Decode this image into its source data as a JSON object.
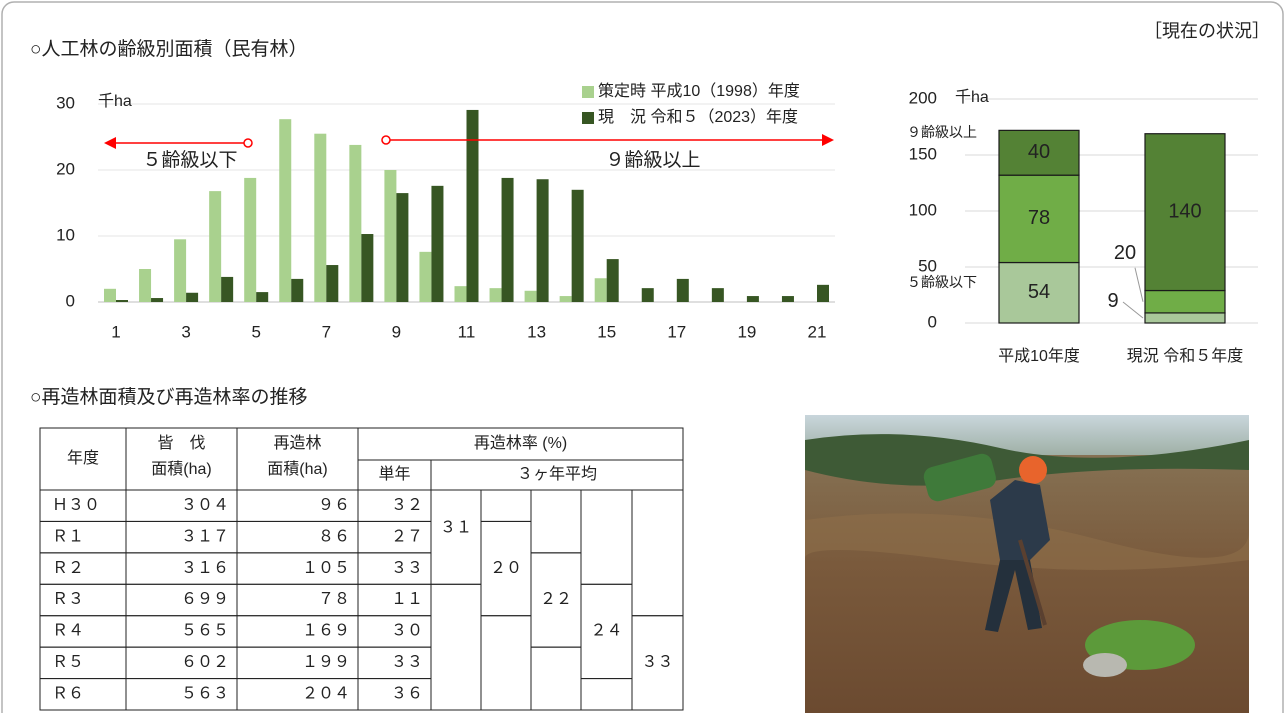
{
  "header": "［現在の状況］",
  "chart_data": [
    {
      "type": "bar",
      "title": "○人工林の齢級別面積（民有林）",
      "y_unit": "千ha",
      "categories": [
        "1",
        null,
        "3",
        null,
        "5",
        null,
        "7",
        null,
        "9",
        null,
        "11",
        null,
        "13",
        null,
        "15",
        null,
        "17",
        null,
        "19",
        null,
        "21"
      ],
      "series": [
        {
          "name": "策定時 平成10（1998）年度",
          "color": "#a9d18e",
          "values": [
            2.0,
            5.0,
            9.5,
            16.8,
            18.8,
            27.7,
            25.5,
            23.8,
            20.0,
            7.6,
            2.4,
            2.1,
            1.7,
            0.9,
            3.6,
            0,
            0,
            0,
            0,
            0,
            0
          ]
        },
        {
          "name": "現　況 令和５（2023）年度",
          "color": "#375623",
          "values": [
            0.3,
            0.6,
            1.4,
            3.8,
            1.5,
            3.5,
            5.6,
            10.3,
            16.5,
            17.6,
            29.1,
            18.8,
            18.6,
            17.0,
            6.5,
            2.1,
            3.5,
            2.1,
            0.9,
            0.9,
            2.6
          ]
        }
      ],
      "ylim": [
        0,
        30
      ],
      "yticks": [
        0,
        10,
        20,
        30
      ],
      "grid": true,
      "legend": "top-right",
      "annotations": [
        "５齢級以下",
        "９齢級以上"
      ],
      "annotation_color": "#ff0000"
    },
    {
      "type": "stacked_bar",
      "y_unit": "千ha",
      "categories": [
        "平成10年度",
        "現況 令和５年度"
      ],
      "series": [
        {
          "name": "５齢級以下",
          "color": "#a9c89a",
          "values": [
            54,
            9
          ]
        },
        {
          "color": "#70ad47",
          "values": [
            78,
            20
          ]
        },
        {
          "name": "９齢級以上",
          "color": "#548235",
          "values": [
            40,
            140
          ]
        }
      ],
      "ylim": [
        0,
        200
      ],
      "yticks": [
        0,
        50,
        100,
        150,
        200
      ],
      "grid": true,
      "name_color": "#ff0000"
    }
  ],
  "table": {
    "title": "○再造林面積及び再造林率の推移",
    "headers": {
      "year": "年度",
      "cut": [
        "皆　伐",
        "面積(ha)"
      ],
      "replant": [
        "再造林",
        "面積(ha)"
      ],
      "rate": "再造林率 (%)",
      "single": "単年",
      "avg": "３ヶ年平均"
    },
    "rows": [
      [
        "Ｈ３０",
        "３０４",
        "９６",
        "３２"
      ],
      [
        "Ｒ１",
        "３１７",
        "８６",
        "２７"
      ],
      [
        "Ｒ２",
        "３１６",
        "１０５",
        "３３"
      ],
      [
        "Ｒ３",
        "６９９",
        "７８",
        "１１"
      ],
      [
        "Ｒ４",
        "５６５",
        "１６９",
        "３０"
      ],
      [
        "Ｒ５",
        "６０２",
        "１９９",
        "３３"
      ],
      [
        "Ｒ６",
        "５６３",
        "２０４",
        "３６"
      ]
    ],
    "averages": [
      "３１",
      "２０",
      "２２",
      "２４",
      "３３"
    ]
  }
}
